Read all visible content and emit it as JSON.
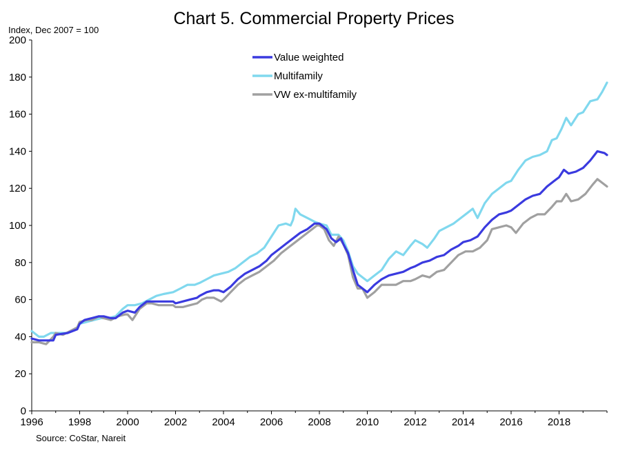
{
  "chart_data": {
    "type": "line",
    "title": "Chart 5. Commercial Property Prices",
    "ylabel": "Index, Dec 2007 = 100",
    "xlabel": "",
    "source": "Source: CoStar, Nareit",
    "ylim": [
      0,
      200
    ],
    "xlim": [
      1996,
      2020
    ],
    "yticks": [
      0,
      20,
      40,
      60,
      80,
      100,
      120,
      140,
      160,
      180,
      200
    ],
    "xticks": [
      1996,
      1998,
      2000,
      2002,
      2004,
      2006,
      2008,
      2010,
      2012,
      2014,
      2016,
      2018
    ],
    "grid": false,
    "legend_position": "top-center",
    "series": [
      {
        "name": "Value weighted",
        "color": "#3a3adf",
        "points": [
          [
            1996.0,
            39
          ],
          [
            1996.3,
            38
          ],
          [
            1996.6,
            38
          ],
          [
            1996.9,
            38
          ],
          [
            1997.0,
            41
          ],
          [
            1997.5,
            42
          ],
          [
            1997.9,
            44
          ],
          [
            1998.0,
            47
          ],
          [
            1998.2,
            49
          ],
          [
            1998.5,
            50
          ],
          [
            1998.8,
            51
          ],
          [
            1999.0,
            51
          ],
          [
            1999.3,
            50
          ],
          [
            1999.5,
            50
          ],
          [
            1999.8,
            53
          ],
          [
            2000.0,
            54
          ],
          [
            2000.3,
            53
          ],
          [
            2000.5,
            56
          ],
          [
            2000.8,
            59
          ],
          [
            2001.0,
            59
          ],
          [
            2001.3,
            59
          ],
          [
            2001.6,
            59
          ],
          [
            2001.9,
            59
          ],
          [
            2002.0,
            58
          ],
          [
            2002.3,
            59
          ],
          [
            2002.6,
            60
          ],
          [
            2002.9,
            61
          ],
          [
            2003.0,
            62
          ],
          [
            2003.3,
            64
          ],
          [
            2003.6,
            65
          ],
          [
            2003.8,
            65
          ],
          [
            2004.0,
            64
          ],
          [
            2004.3,
            67
          ],
          [
            2004.6,
            71
          ],
          [
            2004.9,
            74
          ],
          [
            2005.2,
            76
          ],
          [
            2005.5,
            78
          ],
          [
            2005.8,
            81
          ],
          [
            2006.0,
            84
          ],
          [
            2006.3,
            87
          ],
          [
            2006.6,
            90
          ],
          [
            2006.9,
            93
          ],
          [
            2007.2,
            96
          ],
          [
            2007.5,
            98
          ],
          [
            2007.8,
            101
          ],
          [
            2008.0,
            101
          ],
          [
            2008.3,
            98
          ],
          [
            2008.5,
            93
          ],
          [
            2008.7,
            91
          ],
          [
            2008.9,
            93
          ],
          [
            2009.0,
            90
          ],
          [
            2009.2,
            85
          ],
          [
            2009.4,
            76
          ],
          [
            2009.6,
            68
          ],
          [
            2009.9,
            65
          ],
          [
            2010.0,
            64
          ],
          [
            2010.3,
            68
          ],
          [
            2010.6,
            71
          ],
          [
            2010.9,
            73
          ],
          [
            2011.2,
            74
          ],
          [
            2011.5,
            75
          ],
          [
            2011.8,
            77
          ],
          [
            2012.0,
            78
          ],
          [
            2012.3,
            80
          ],
          [
            2012.6,
            81
          ],
          [
            2012.9,
            83
          ],
          [
            2013.2,
            84
          ],
          [
            2013.5,
            87
          ],
          [
            2013.8,
            89
          ],
          [
            2014.0,
            91
          ],
          [
            2014.3,
            92
          ],
          [
            2014.6,
            94
          ],
          [
            2014.9,
            99
          ],
          [
            2015.2,
            103
          ],
          [
            2015.5,
            106
          ],
          [
            2015.8,
            107
          ],
          [
            2016.0,
            108
          ],
          [
            2016.3,
            111
          ],
          [
            2016.6,
            114
          ],
          [
            2016.9,
            116
          ],
          [
            2017.2,
            117
          ],
          [
            2017.5,
            121
          ],
          [
            2017.8,
            124
          ],
          [
            2018.0,
            126
          ],
          [
            2018.2,
            130
          ],
          [
            2018.4,
            128
          ],
          [
            2018.7,
            129
          ],
          [
            2019.0,
            131
          ],
          [
            2019.3,
            135
          ],
          [
            2019.6,
            140
          ],
          [
            2019.9,
            139
          ],
          [
            2020.0,
            138
          ]
        ]
      },
      {
        "name": "Multifamily",
        "color": "#80d8ee",
        "points": [
          [
            1996.0,
            43
          ],
          [
            1996.3,
            40
          ],
          [
            1996.5,
            40
          ],
          [
            1996.8,
            42
          ],
          [
            1997.0,
            42
          ],
          [
            1997.5,
            42
          ],
          [
            1997.9,
            45
          ],
          [
            1998.0,
            47
          ],
          [
            1998.3,
            48
          ],
          [
            1998.6,
            49
          ],
          [
            1998.9,
            50
          ],
          [
            1999.2,
            50
          ],
          [
            1999.5,
            51
          ],
          [
            1999.8,
            55
          ],
          [
            2000.0,
            57
          ],
          [
            2000.3,
            57
          ],
          [
            2000.6,
            58
          ],
          [
            2000.9,
            60
          ],
          [
            2001.2,
            62
          ],
          [
            2001.5,
            63
          ],
          [
            2001.9,
            64
          ],
          [
            2002.2,
            66
          ],
          [
            2002.5,
            68
          ],
          [
            2002.8,
            68
          ],
          [
            2003.0,
            69
          ],
          [
            2003.3,
            71
          ],
          [
            2003.6,
            73
          ],
          [
            2003.9,
            74
          ],
          [
            2004.2,
            75
          ],
          [
            2004.5,
            77
          ],
          [
            2004.8,
            80
          ],
          [
            2005.1,
            83
          ],
          [
            2005.4,
            85
          ],
          [
            2005.7,
            88
          ],
          [
            2006.0,
            94
          ],
          [
            2006.3,
            100
          ],
          [
            2006.6,
            101
          ],
          [
            2006.8,
            100
          ],
          [
            2006.9,
            103
          ],
          [
            2007.0,
            109
          ],
          [
            2007.2,
            106
          ],
          [
            2007.5,
            104
          ],
          [
            2007.8,
            102
          ],
          [
            2008.0,
            101
          ],
          [
            2008.3,
            100
          ],
          [
            2008.5,
            95
          ],
          [
            2008.8,
            95
          ],
          [
            2009.0,
            92
          ],
          [
            2009.2,
            86
          ],
          [
            2009.4,
            78
          ],
          [
            2009.6,
            74
          ],
          [
            2009.9,
            71
          ],
          [
            2010.0,
            70
          ],
          [
            2010.3,
            73
          ],
          [
            2010.6,
            76
          ],
          [
            2010.9,
            82
          ],
          [
            2011.2,
            86
          ],
          [
            2011.5,
            84
          ],
          [
            2011.8,
            89
          ],
          [
            2012.0,
            92
          ],
          [
            2012.3,
            90
          ],
          [
            2012.5,
            88
          ],
          [
            2012.8,
            93
          ],
          [
            2013.0,
            97
          ],
          [
            2013.3,
            99
          ],
          [
            2013.6,
            101
          ],
          [
            2013.9,
            104
          ],
          [
            2014.2,
            107
          ],
          [
            2014.4,
            109
          ],
          [
            2014.6,
            104
          ],
          [
            2014.9,
            112
          ],
          [
            2015.2,
            117
          ],
          [
            2015.5,
            120
          ],
          [
            2015.8,
            123
          ],
          [
            2016.0,
            124
          ],
          [
            2016.3,
            130
          ],
          [
            2016.6,
            135
          ],
          [
            2016.9,
            137
          ],
          [
            2017.2,
            138
          ],
          [
            2017.5,
            140
          ],
          [
            2017.7,
            146
          ],
          [
            2017.9,
            147
          ],
          [
            2018.1,
            152
          ],
          [
            2018.3,
            158
          ],
          [
            2018.5,
            154
          ],
          [
            2018.8,
            160
          ],
          [
            2019.0,
            161
          ],
          [
            2019.3,
            167
          ],
          [
            2019.6,
            168
          ],
          [
            2019.8,
            172
          ],
          [
            2020.0,
            177
          ]
        ]
      },
      {
        "name": "VW ex-multifamily",
        "color": "#a0a0a0",
        "points": [
          [
            1996.0,
            37
          ],
          [
            1996.3,
            37
          ],
          [
            1996.6,
            36
          ],
          [
            1996.9,
            40
          ],
          [
            1997.0,
            42
          ],
          [
            1997.3,
            41
          ],
          [
            1997.6,
            43
          ],
          [
            1997.9,
            45
          ],
          [
            1998.0,
            48
          ],
          [
            1998.3,
            49
          ],
          [
            1998.5,
            49
          ],
          [
            1998.8,
            51
          ],
          [
            1999.0,
            50
          ],
          [
            1999.3,
            49
          ],
          [
            1999.6,
            51
          ],
          [
            1999.9,
            52
          ],
          [
            2000.0,
            52
          ],
          [
            2000.2,
            49
          ],
          [
            2000.5,
            55
          ],
          [
            2000.8,
            58
          ],
          [
            2001.0,
            58
          ],
          [
            2001.3,
            57
          ],
          [
            2001.6,
            57
          ],
          [
            2001.9,
            57
          ],
          [
            2002.0,
            56
          ],
          [
            2002.3,
            56
          ],
          [
            2002.6,
            57
          ],
          [
            2002.9,
            58
          ],
          [
            2003.1,
            60
          ],
          [
            2003.3,
            61
          ],
          [
            2003.6,
            61
          ],
          [
            2003.9,
            59
          ],
          [
            2004.0,
            60
          ],
          [
            2004.3,
            64
          ],
          [
            2004.6,
            68
          ],
          [
            2004.9,
            71
          ],
          [
            2005.2,
            73
          ],
          [
            2005.5,
            75
          ],
          [
            2005.8,
            78
          ],
          [
            2006.1,
            81
          ],
          [
            2006.4,
            85
          ],
          [
            2006.7,
            88
          ],
          [
            2007.0,
            91
          ],
          [
            2007.3,
            94
          ],
          [
            2007.6,
            97
          ],
          [
            2007.9,
            100
          ],
          [
            2008.0,
            100
          ],
          [
            2008.2,
            98
          ],
          [
            2008.4,
            92
          ],
          [
            2008.6,
            89
          ],
          [
            2008.8,
            94
          ],
          [
            2009.0,
            90
          ],
          [
            2009.2,
            84
          ],
          [
            2009.4,
            72
          ],
          [
            2009.6,
            66
          ],
          [
            2009.8,
            66
          ],
          [
            2010.0,
            61
          ],
          [
            2010.3,
            64
          ],
          [
            2010.6,
            68
          ],
          [
            2010.9,
            68
          ],
          [
            2011.2,
            68
          ],
          [
            2011.5,
            70
          ],
          [
            2011.8,
            70
          ],
          [
            2012.0,
            71
          ],
          [
            2012.3,
            73
          ],
          [
            2012.6,
            72
          ],
          [
            2012.9,
            75
          ],
          [
            2013.2,
            76
          ],
          [
            2013.5,
            80
          ],
          [
            2013.8,
            84
          ],
          [
            2014.1,
            86
          ],
          [
            2014.4,
            86
          ],
          [
            2014.7,
            88
          ],
          [
            2015.0,
            92
          ],
          [
            2015.2,
            98
          ],
          [
            2015.5,
            99
          ],
          [
            2015.8,
            100
          ],
          [
            2016.0,
            99
          ],
          [
            2016.2,
            96
          ],
          [
            2016.5,
            101
          ],
          [
            2016.8,
            104
          ],
          [
            2017.1,
            106
          ],
          [
            2017.4,
            106
          ],
          [
            2017.7,
            110
          ],
          [
            2017.9,
            113
          ],
          [
            2018.1,
            113
          ],
          [
            2018.3,
            117
          ],
          [
            2018.5,
            113
          ],
          [
            2018.8,
            114
          ],
          [
            2019.1,
            117
          ],
          [
            2019.4,
            122
          ],
          [
            2019.6,
            125
          ],
          [
            2019.8,
            123
          ],
          [
            2020.0,
            121
          ]
        ]
      }
    ]
  }
}
